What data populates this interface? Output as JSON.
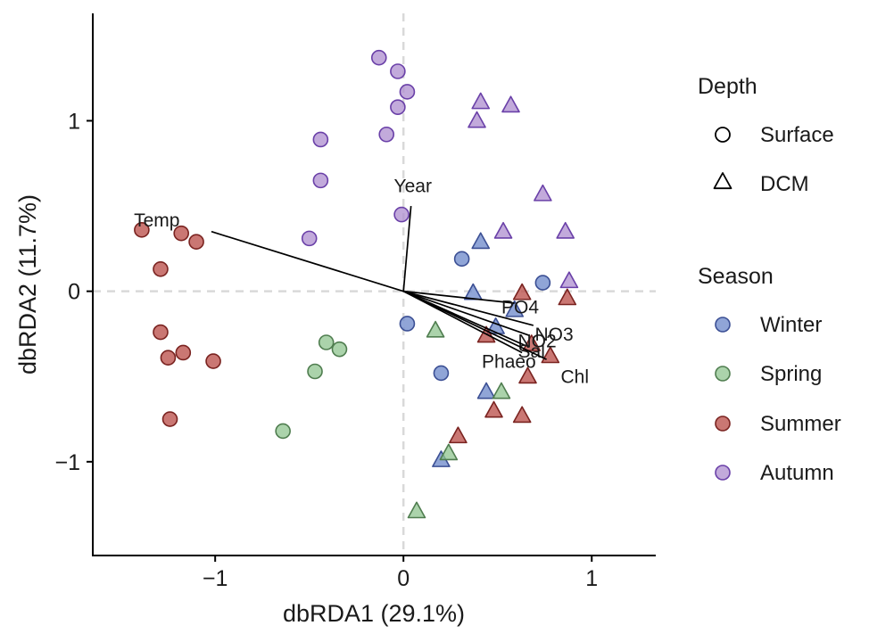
{
  "chart_data": {
    "type": "scatter",
    "xlabel": "dbRDA1 (29.1%)",
    "ylabel": "dbRDA2 (11.7%)",
    "xlim": [
      -1.65,
      1.34
    ],
    "ylim": [
      -1.55,
      1.63
    ],
    "x_ticks": [
      {
        "value": -1,
        "label": "−1"
      },
      {
        "value": 0,
        "label": "0"
      },
      {
        "value": 1,
        "label": "1"
      }
    ],
    "y_ticks": [
      {
        "value": -1,
        "label": "−1"
      },
      {
        "value": 0,
        "label": "0"
      },
      {
        "value": 1,
        "label": "1"
      }
    ],
    "reference_lines": {
      "x": 0,
      "y": 0,
      "style": "dashed",
      "color": "#d9d9d9"
    },
    "colors": {
      "Winter": "#6b87c9",
      "Spring": "#8fc48f",
      "Summer": "#b84a44",
      "Autumn": "#ad8dcf"
    },
    "stroke_colors": {
      "Winter": "#3b4f94",
      "Spring": "#4f7d4f",
      "Summer": "#7a2320",
      "Autumn": "#6a40a8"
    },
    "legend": {
      "placement": "right",
      "depth": {
        "title": "Depth",
        "items": [
          {
            "label": "Surface",
            "shape": "circle"
          },
          {
            "label": "DCM",
            "shape": "triangle"
          }
        ]
      },
      "season": {
        "title": "Season",
        "items": [
          {
            "label": "Winter"
          },
          {
            "label": "Spring"
          },
          {
            "label": "Summer"
          },
          {
            "label": "Autumn"
          }
        ]
      }
    },
    "vectors": [
      {
        "name": "Temp",
        "x": -1.02,
        "y": 0.35,
        "label_x": -1.31,
        "label_y": 0.41
      },
      {
        "name": "Year",
        "x": 0.04,
        "y": 0.5,
        "label_x": 0.05,
        "label_y": 0.61
      },
      {
        "name": "PO4",
        "x": 0.59,
        "y": -0.07,
        "label_x": 0.62,
        "label_y": -0.1
      },
      {
        "name": "NO3",
        "x": 0.69,
        "y": -0.2,
        "label_x": 0.8,
        "label_y": -0.26
      },
      {
        "name": "NO2",
        "x": 0.67,
        "y": -0.26,
        "label_x": 0.71,
        "label_y": -0.3
      },
      {
        "name": "Sal",
        "x": 0.65,
        "y": -0.32,
        "label_x": 0.68,
        "label_y": -0.36
      },
      {
        "name": "Phaeo",
        "x": 0.63,
        "y": -0.36,
        "label_x": 0.56,
        "label_y": -0.42
      },
      {
        "name": "Chl",
        "x": 0.76,
        "y": -0.4,
        "label_x": 0.91,
        "label_y": -0.51
      }
    ],
    "points": [
      {
        "x": -1.39,
        "y": 0.36,
        "season": "Summer",
        "depth": "Surface"
      },
      {
        "x": -1.18,
        "y": 0.34,
        "season": "Summer",
        "depth": "Surface"
      },
      {
        "x": -1.1,
        "y": 0.29,
        "season": "Summer",
        "depth": "Surface"
      },
      {
        "x": -1.29,
        "y": 0.13,
        "season": "Summer",
        "depth": "Surface"
      },
      {
        "x": -1.29,
        "y": -0.24,
        "season": "Summer",
        "depth": "Surface"
      },
      {
        "x": -1.25,
        "y": -0.39,
        "season": "Summer",
        "depth": "Surface"
      },
      {
        "x": -1.17,
        "y": -0.36,
        "season": "Summer",
        "depth": "Surface"
      },
      {
        "x": -1.01,
        "y": -0.41,
        "season": "Summer",
        "depth": "Surface"
      },
      {
        "x": -1.24,
        "y": -0.75,
        "season": "Summer",
        "depth": "Surface"
      },
      {
        "x": -0.13,
        "y": 1.37,
        "season": "Autumn",
        "depth": "Surface"
      },
      {
        "x": -0.03,
        "y": 1.29,
        "season": "Autumn",
        "depth": "Surface"
      },
      {
        "x": 0.02,
        "y": 1.17,
        "season": "Autumn",
        "depth": "Surface"
      },
      {
        "x": -0.03,
        "y": 1.08,
        "season": "Autumn",
        "depth": "Surface"
      },
      {
        "x": -0.09,
        "y": 0.92,
        "season": "Autumn",
        "depth": "Surface"
      },
      {
        "x": -0.44,
        "y": 0.89,
        "season": "Autumn",
        "depth": "Surface"
      },
      {
        "x": -0.44,
        "y": 0.65,
        "season": "Autumn",
        "depth": "Surface"
      },
      {
        "x": -0.5,
        "y": 0.31,
        "season": "Autumn",
        "depth": "Surface"
      },
      {
        "x": -0.01,
        "y": 0.45,
        "season": "Autumn",
        "depth": "Surface"
      },
      {
        "x": -0.41,
        "y": -0.3,
        "season": "Spring",
        "depth": "Surface"
      },
      {
        "x": -0.34,
        "y": -0.34,
        "season": "Spring",
        "depth": "Surface"
      },
      {
        "x": -0.47,
        "y": -0.47,
        "season": "Spring",
        "depth": "Surface"
      },
      {
        "x": -0.64,
        "y": -0.82,
        "season": "Spring",
        "depth": "Surface"
      },
      {
        "x": 0.31,
        "y": 0.19,
        "season": "Winter",
        "depth": "Surface"
      },
      {
        "x": 0.74,
        "y": 0.05,
        "season": "Winter",
        "depth": "Surface"
      },
      {
        "x": 0.02,
        "y": -0.19,
        "season": "Winter",
        "depth": "Surface"
      },
      {
        "x": 0.2,
        "y": -0.48,
        "season": "Winter",
        "depth": "Surface"
      },
      {
        "x": 0.41,
        "y": 1.11,
        "season": "Autumn",
        "depth": "DCM"
      },
      {
        "x": 0.57,
        "y": 1.09,
        "season": "Autumn",
        "depth": "DCM"
      },
      {
        "x": 0.39,
        "y": 1.0,
        "season": "Autumn",
        "depth": "DCM"
      },
      {
        "x": 0.74,
        "y": 0.57,
        "season": "Autumn",
        "depth": "DCM"
      },
      {
        "x": 0.53,
        "y": 0.35,
        "season": "Autumn",
        "depth": "DCM"
      },
      {
        "x": 0.86,
        "y": 0.35,
        "season": "Autumn",
        "depth": "DCM"
      },
      {
        "x": 0.88,
        "y": 0.06,
        "season": "Autumn",
        "depth": "DCM"
      },
      {
        "x": 0.41,
        "y": 0.29,
        "season": "Winter",
        "depth": "DCM"
      },
      {
        "x": 0.37,
        "y": -0.01,
        "season": "Winter",
        "depth": "DCM"
      },
      {
        "x": 0.59,
        "y": -0.11,
        "season": "Winter",
        "depth": "DCM"
      },
      {
        "x": 0.49,
        "y": -0.21,
        "season": "Winter",
        "depth": "DCM"
      },
      {
        "x": 0.44,
        "y": -0.59,
        "season": "Winter",
        "depth": "DCM"
      },
      {
        "x": 0.2,
        "y": -0.99,
        "season": "Winter",
        "depth": "DCM"
      },
      {
        "x": 0.63,
        "y": -0.01,
        "season": "Summer",
        "depth": "DCM"
      },
      {
        "x": 0.87,
        "y": -0.04,
        "season": "Summer",
        "depth": "DCM"
      },
      {
        "x": 0.44,
        "y": -0.26,
        "season": "Summer",
        "depth": "DCM"
      },
      {
        "x": 0.68,
        "y": -0.31,
        "season": "Summer",
        "depth": "DCM"
      },
      {
        "x": 0.78,
        "y": -0.38,
        "season": "Summer",
        "depth": "DCM"
      },
      {
        "x": 0.66,
        "y": -0.5,
        "season": "Summer",
        "depth": "DCM"
      },
      {
        "x": 0.48,
        "y": -0.7,
        "season": "Summer",
        "depth": "DCM"
      },
      {
        "x": 0.63,
        "y": -0.73,
        "season": "Summer",
        "depth": "DCM"
      },
      {
        "x": 0.29,
        "y": -0.85,
        "season": "Summer",
        "depth": "DCM"
      },
      {
        "x": 0.17,
        "y": -0.23,
        "season": "Spring",
        "depth": "DCM"
      },
      {
        "x": 0.52,
        "y": -0.59,
        "season": "Spring",
        "depth": "DCM"
      },
      {
        "x": 0.24,
        "y": -0.95,
        "season": "Spring",
        "depth": "DCM"
      },
      {
        "x": 0.07,
        "y": -1.29,
        "season": "Spring",
        "depth": "DCM"
      }
    ]
  }
}
